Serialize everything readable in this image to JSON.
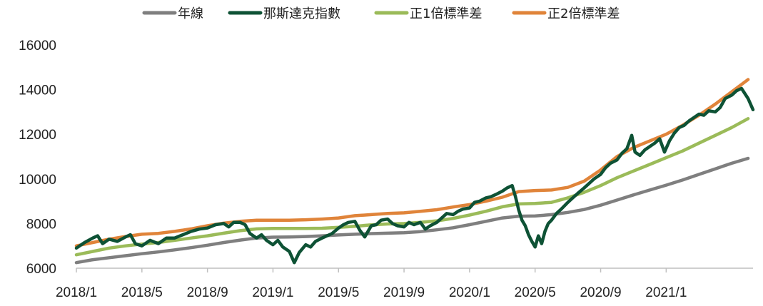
{
  "chart_data": {
    "type": "line",
    "title": "",
    "xlabel": "",
    "ylabel": "",
    "ylim": [
      6000,
      16000
    ],
    "yticks": [
      6000,
      8000,
      10000,
      12000,
      14000,
      16000
    ],
    "y_tick_labels": [
      "6000",
      "8000",
      "10000",
      "12000",
      "14000",
      "16000"
    ],
    "x_range": [
      "2018-01",
      "2021-04"
    ],
    "x_tick_labels": [
      "2018/1",
      "2018/5",
      "2018/9",
      "2019/1",
      "2019/5",
      "2019/9",
      "2020/1",
      "2020/5",
      "2020/9",
      "2021/1"
    ],
    "grid": false,
    "legend_position": "top",
    "series": [
      {
        "name": "年線",
        "color": "#7f7f7f",
        "points": [
          [
            0,
            6250
          ],
          [
            1,
            6380
          ],
          [
            2,
            6470
          ],
          [
            3,
            6560
          ],
          [
            4,
            6650
          ],
          [
            5,
            6730
          ],
          [
            6,
            6820
          ],
          [
            7,
            6920
          ],
          [
            8,
            7030
          ],
          [
            9,
            7150
          ],
          [
            10,
            7260
          ],
          [
            11,
            7350
          ],
          [
            12,
            7390
          ],
          [
            13,
            7400
          ],
          [
            14,
            7420
          ],
          [
            15,
            7450
          ],
          [
            16,
            7490
          ],
          [
            17,
            7520
          ],
          [
            18,
            7550
          ],
          [
            19,
            7570
          ],
          [
            20,
            7590
          ],
          [
            21,
            7640
          ],
          [
            22,
            7720
          ],
          [
            23,
            7810
          ],
          [
            24,
            7950
          ],
          [
            25,
            8100
          ],
          [
            26,
            8250
          ],
          [
            27,
            8330
          ],
          [
            28,
            8340
          ],
          [
            29,
            8400
          ],
          [
            30,
            8500
          ],
          [
            31,
            8630
          ],
          [
            32,
            8820
          ],
          [
            33,
            9050
          ],
          [
            34,
            9280
          ],
          [
            35,
            9500
          ],
          [
            36,
            9720
          ],
          [
            37,
            9950
          ],
          [
            38,
            10200
          ],
          [
            39,
            10450
          ],
          [
            40,
            10700
          ],
          [
            41,
            10920
          ]
        ]
      },
      {
        "name": "那斯達克指數",
        "color": "#0e5235",
        "points": [
          [
            0,
            6900
          ],
          [
            0.5,
            7150
          ],
          [
            1,
            7350
          ],
          [
            1.3,
            7450
          ],
          [
            1.6,
            7100
          ],
          [
            2,
            7300
          ],
          [
            2.5,
            7200
          ],
          [
            3,
            7400
          ],
          [
            3.3,
            7500
          ],
          [
            3.6,
            7100
          ],
          [
            4,
            7000
          ],
          [
            4.5,
            7250
          ],
          [
            5,
            7100
          ],
          [
            5.5,
            7350
          ],
          [
            6,
            7350
          ],
          [
            6.5,
            7500
          ],
          [
            7,
            7650
          ],
          [
            7.5,
            7750
          ],
          [
            8,
            7800
          ],
          [
            8.5,
            7950
          ],
          [
            9,
            8000
          ],
          [
            9.3,
            7850
          ],
          [
            9.6,
            8050
          ],
          [
            10,
            8050
          ],
          [
            10.3,
            7950
          ],
          [
            10.6,
            7550
          ],
          [
            11,
            7350
          ],
          [
            11.3,
            7500
          ],
          [
            11.6,
            7250
          ],
          [
            12,
            7050
          ],
          [
            12.3,
            7250
          ],
          [
            12.6,
            6950
          ],
          [
            13,
            6750
          ],
          [
            13.3,
            6250
          ],
          [
            13.6,
            6700
          ],
          [
            14,
            7050
          ],
          [
            14.3,
            6950
          ],
          [
            14.6,
            7200
          ],
          [
            15,
            7350
          ],
          [
            15.3,
            7450
          ],
          [
            15.6,
            7550
          ],
          [
            16,
            7800
          ],
          [
            16.3,
            7950
          ],
          [
            16.6,
            8050
          ],
          [
            17,
            8100
          ],
          [
            17.3,
            7700
          ],
          [
            17.6,
            7400
          ],
          [
            18,
            7900
          ],
          [
            18.3,
            7950
          ],
          [
            18.6,
            8150
          ],
          [
            19,
            8200
          ],
          [
            19.3,
            8000
          ],
          [
            19.6,
            7900
          ],
          [
            20,
            7850
          ],
          [
            20.3,
            8050
          ],
          [
            20.6,
            7950
          ],
          [
            21,
            8050
          ],
          [
            21.3,
            7750
          ],
          [
            21.6,
            7900
          ],
          [
            22,
            8050
          ],
          [
            22.3,
            8250
          ],
          [
            22.6,
            8450
          ],
          [
            23,
            8400
          ],
          [
            23.3,
            8550
          ],
          [
            23.6,
            8650
          ],
          [
            24,
            8700
          ],
          [
            24.3,
            8950
          ],
          [
            24.6,
            9000
          ],
          [
            25,
            9150
          ],
          [
            25.3,
            9200
          ],
          [
            25.6,
            9300
          ],
          [
            26,
            9450
          ],
          [
            26.3,
            9600
          ],
          [
            26.6,
            9700
          ],
          [
            26.8,
            9200
          ],
          [
            27,
            8600
          ],
          [
            27.2,
            8150
          ],
          [
            27.4,
            7900
          ],
          [
            27.6,
            7500
          ],
          [
            27.8,
            7200
          ],
          [
            28,
            6950
          ],
          [
            28.2,
            7450
          ],
          [
            28.4,
            7100
          ],
          [
            28.6,
            7650
          ],
          [
            28.8,
            8000
          ],
          [
            29,
            8150
          ],
          [
            29.3,
            8450
          ],
          [
            29.6,
            8650
          ],
          [
            30,
            8950
          ],
          [
            30.3,
            9150
          ],
          [
            30.6,
            9350
          ],
          [
            31,
            9600
          ],
          [
            31.3,
            9800
          ],
          [
            31.6,
            10000
          ],
          [
            32,
            10200
          ],
          [
            32.3,
            10500
          ],
          [
            32.6,
            10700
          ],
          [
            33,
            10850
          ],
          [
            33.3,
            11150
          ],
          [
            33.6,
            11350
          ],
          [
            33.9,
            11950
          ],
          [
            34.1,
            11200
          ],
          [
            34.4,
            11050
          ],
          [
            34.7,
            11300
          ],
          [
            35,
            11450
          ],
          [
            35.3,
            11600
          ],
          [
            35.6,
            11800
          ],
          [
            35.9,
            11200
          ],
          [
            36.2,
            11700
          ],
          [
            36.5,
            12050
          ],
          [
            36.8,
            12300
          ],
          [
            37.1,
            12400
          ],
          [
            37.4,
            12600
          ],
          [
            37.7,
            12750
          ],
          [
            38,
            12900
          ],
          [
            38.3,
            12850
          ],
          [
            38.6,
            13050
          ],
          [
            39,
            13000
          ],
          [
            39.3,
            13200
          ],
          [
            39.6,
            13600
          ],
          [
            40,
            13750
          ],
          [
            40.3,
            13950
          ],
          [
            40.6,
            14050
          ],
          [
            41,
            13600
          ],
          [
            41.3,
            13100
          ]
        ]
      },
      {
        "name": "正1倍標準差",
        "color": "#9bbb59",
        "points": [
          [
            0,
            6600
          ],
          [
            1,
            6750
          ],
          [
            2,
            6900
          ],
          [
            3,
            7000
          ],
          [
            4,
            7080
          ],
          [
            5,
            7150
          ],
          [
            6,
            7250
          ],
          [
            7,
            7350
          ],
          [
            8,
            7450
          ],
          [
            9,
            7570
          ],
          [
            10,
            7680
          ],
          [
            11,
            7760
          ],
          [
            12,
            7780
          ],
          [
            13,
            7780
          ],
          [
            14,
            7780
          ],
          [
            15,
            7790
          ],
          [
            16,
            7830
          ],
          [
            17,
            7880
          ],
          [
            18,
            7940
          ],
          [
            19,
            7980
          ],
          [
            20,
            8000
          ],
          [
            21,
            8050
          ],
          [
            22,
            8120
          ],
          [
            23,
            8230
          ],
          [
            24,
            8380
          ],
          [
            25,
            8550
          ],
          [
            26,
            8750
          ],
          [
            27,
            8880
          ],
          [
            28,
            8900
          ],
          [
            29,
            8950
          ],
          [
            30,
            9150
          ],
          [
            31,
            9400
          ],
          [
            32,
            9700
          ],
          [
            33,
            10050
          ],
          [
            34,
            10350
          ],
          [
            35,
            10650
          ],
          [
            36,
            10950
          ],
          [
            37,
            11250
          ],
          [
            38,
            11600
          ],
          [
            39,
            11950
          ],
          [
            40,
            12300
          ],
          [
            41,
            12700
          ]
        ]
      },
      {
        "name": "正2倍標準差",
        "color": "#e0843a",
        "points": [
          [
            0,
            7000
          ],
          [
            1,
            7150
          ],
          [
            2,
            7300
          ],
          [
            3,
            7420
          ],
          [
            4,
            7520
          ],
          [
            5,
            7560
          ],
          [
            6,
            7650
          ],
          [
            7,
            7760
          ],
          [
            8,
            7900
          ],
          [
            9,
            8020
          ],
          [
            10,
            8100
          ],
          [
            11,
            8150
          ],
          [
            12,
            8150
          ],
          [
            13,
            8150
          ],
          [
            14,
            8170
          ],
          [
            15,
            8200
          ],
          [
            16,
            8250
          ],
          [
            17,
            8350
          ],
          [
            18,
            8400
          ],
          [
            19,
            8450
          ],
          [
            20,
            8480
          ],
          [
            21,
            8550
          ],
          [
            22,
            8620
          ],
          [
            23,
            8740
          ],
          [
            24,
            8850
          ],
          [
            25,
            9000
          ],
          [
            26,
            9180
          ],
          [
            27,
            9430
          ],
          [
            28,
            9480
          ],
          [
            29,
            9500
          ],
          [
            30,
            9620
          ],
          [
            31,
            9900
          ],
          [
            32,
            10400
          ],
          [
            33,
            11000
          ],
          [
            34,
            11400
          ],
          [
            35,
            11700
          ],
          [
            36,
            12000
          ],
          [
            37,
            12400
          ],
          [
            38,
            12850
          ],
          [
            39,
            13350
          ],
          [
            40,
            13900
          ],
          [
            41,
            14450
          ]
        ]
      }
    ]
  }
}
